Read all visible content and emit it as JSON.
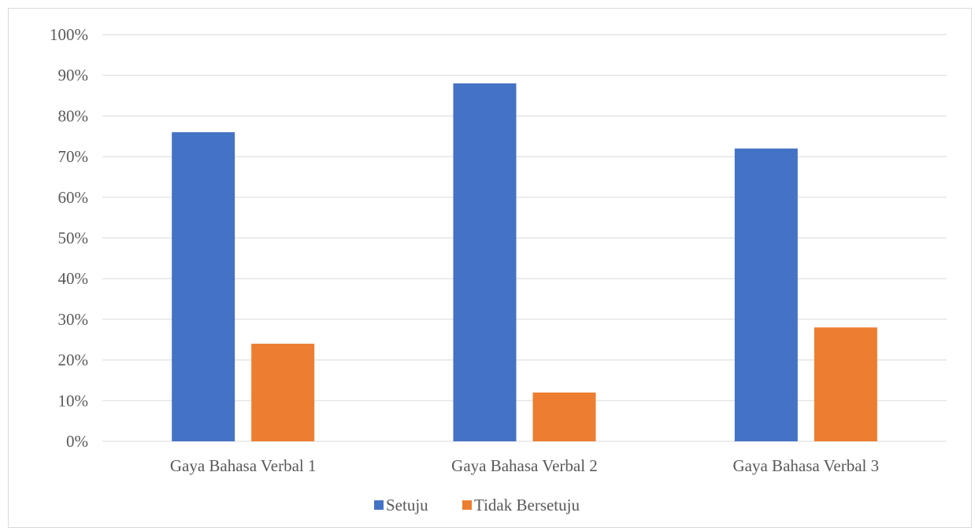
{
  "chart_data": {
    "type": "bar",
    "categories": [
      "Gaya Bahasa Verbal 1",
      "Gaya Bahasa Verbal 2",
      "Gaya Bahasa Verbal 3"
    ],
    "series": [
      {
        "name": "Setuju",
        "values": [
          76,
          88,
          72
        ],
        "color": "#4472c4"
      },
      {
        "name": "Tidak Bersetuju",
        "values": [
          24,
          12,
          28
        ],
        "color": "#ed7d31"
      }
    ],
    "y_ticks": [
      "0%",
      "10%",
      "20%",
      "30%",
      "40%",
      "50%",
      "60%",
      "70%",
      "80%",
      "90%",
      "100%"
    ],
    "ylim": [
      0,
      100
    ],
    "grid": true,
    "gridline_color": "#d9d9d9",
    "legend_position": "bottom",
    "title": "",
    "xlabel": "",
    "ylabel": ""
  }
}
